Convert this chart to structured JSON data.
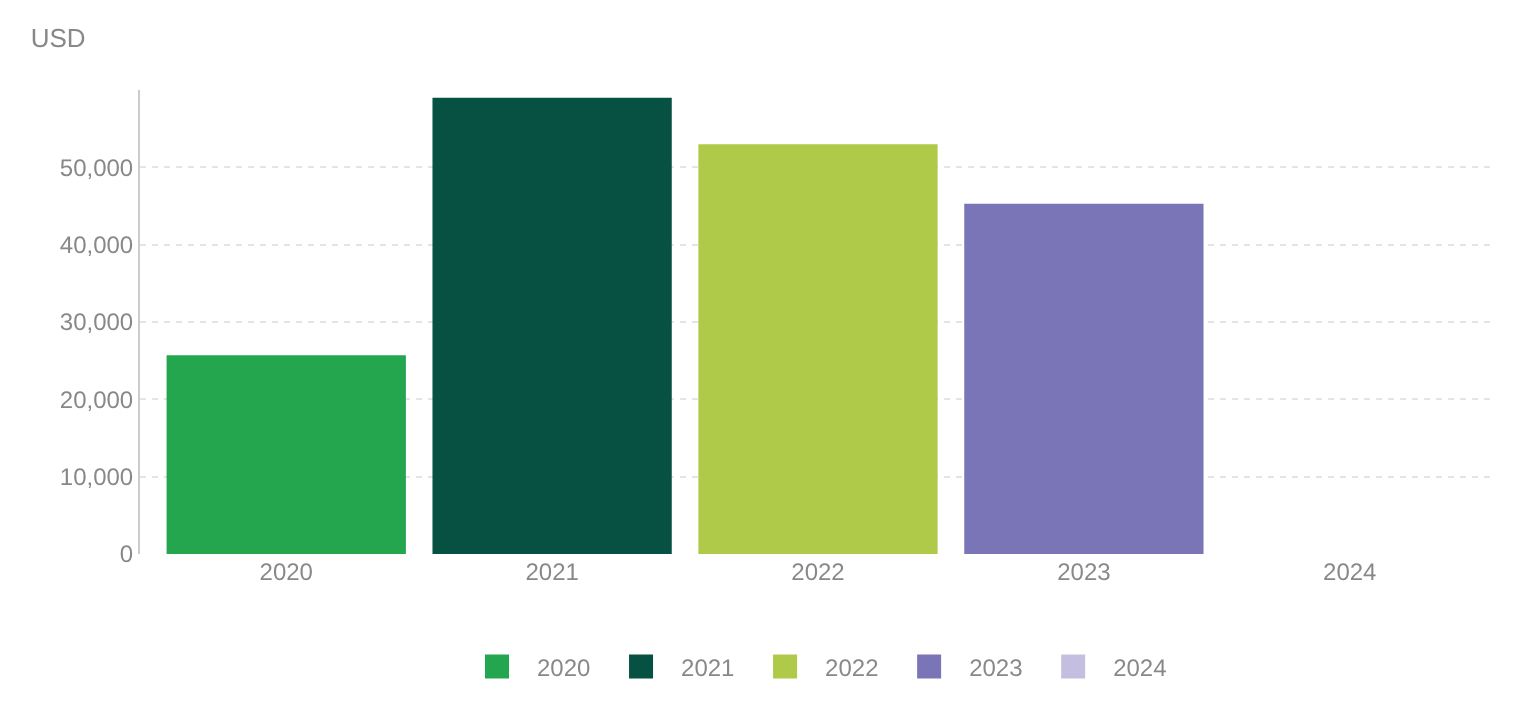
{
  "chart_data": {
    "type": "bar",
    "title": "USD",
    "categories": [
      "2020",
      "2021",
      "2022",
      "2023",
      "2024"
    ],
    "series": [
      {
        "name": "2020",
        "color": "#24a64f",
        "values": [
          25700,
          null,
          null,
          null,
          null
        ]
      },
      {
        "name": "2021",
        "color": "#075142",
        "values": [
          null,
          59000,
          null,
          null,
          null
        ]
      },
      {
        "name": "2022",
        "color": "#afca49",
        "values": [
          null,
          null,
          53000,
          null,
          null
        ]
      },
      {
        "name": "2023",
        "color": "#7a75b6",
        "values": [
          null,
          null,
          null,
          45300,
          null
        ]
      },
      {
        "name": "2024",
        "color": "#c4bfe1",
        "values": [
          null,
          null,
          null,
          null,
          null
        ]
      }
    ],
    "ylim": [
      0,
      60000
    ],
    "yticks": [
      {
        "value": 0,
        "label": "0"
      },
      {
        "value": 10000,
        "label": "10,000"
      },
      {
        "value": 20000,
        "label": "20,000"
      },
      {
        "value": 30000,
        "label": "30,000"
      },
      {
        "value": 40000,
        "label": "40,000"
      },
      {
        "value": 50000,
        "label": "50,000"
      }
    ],
    "grid": "y",
    "legend": "bottom"
  }
}
